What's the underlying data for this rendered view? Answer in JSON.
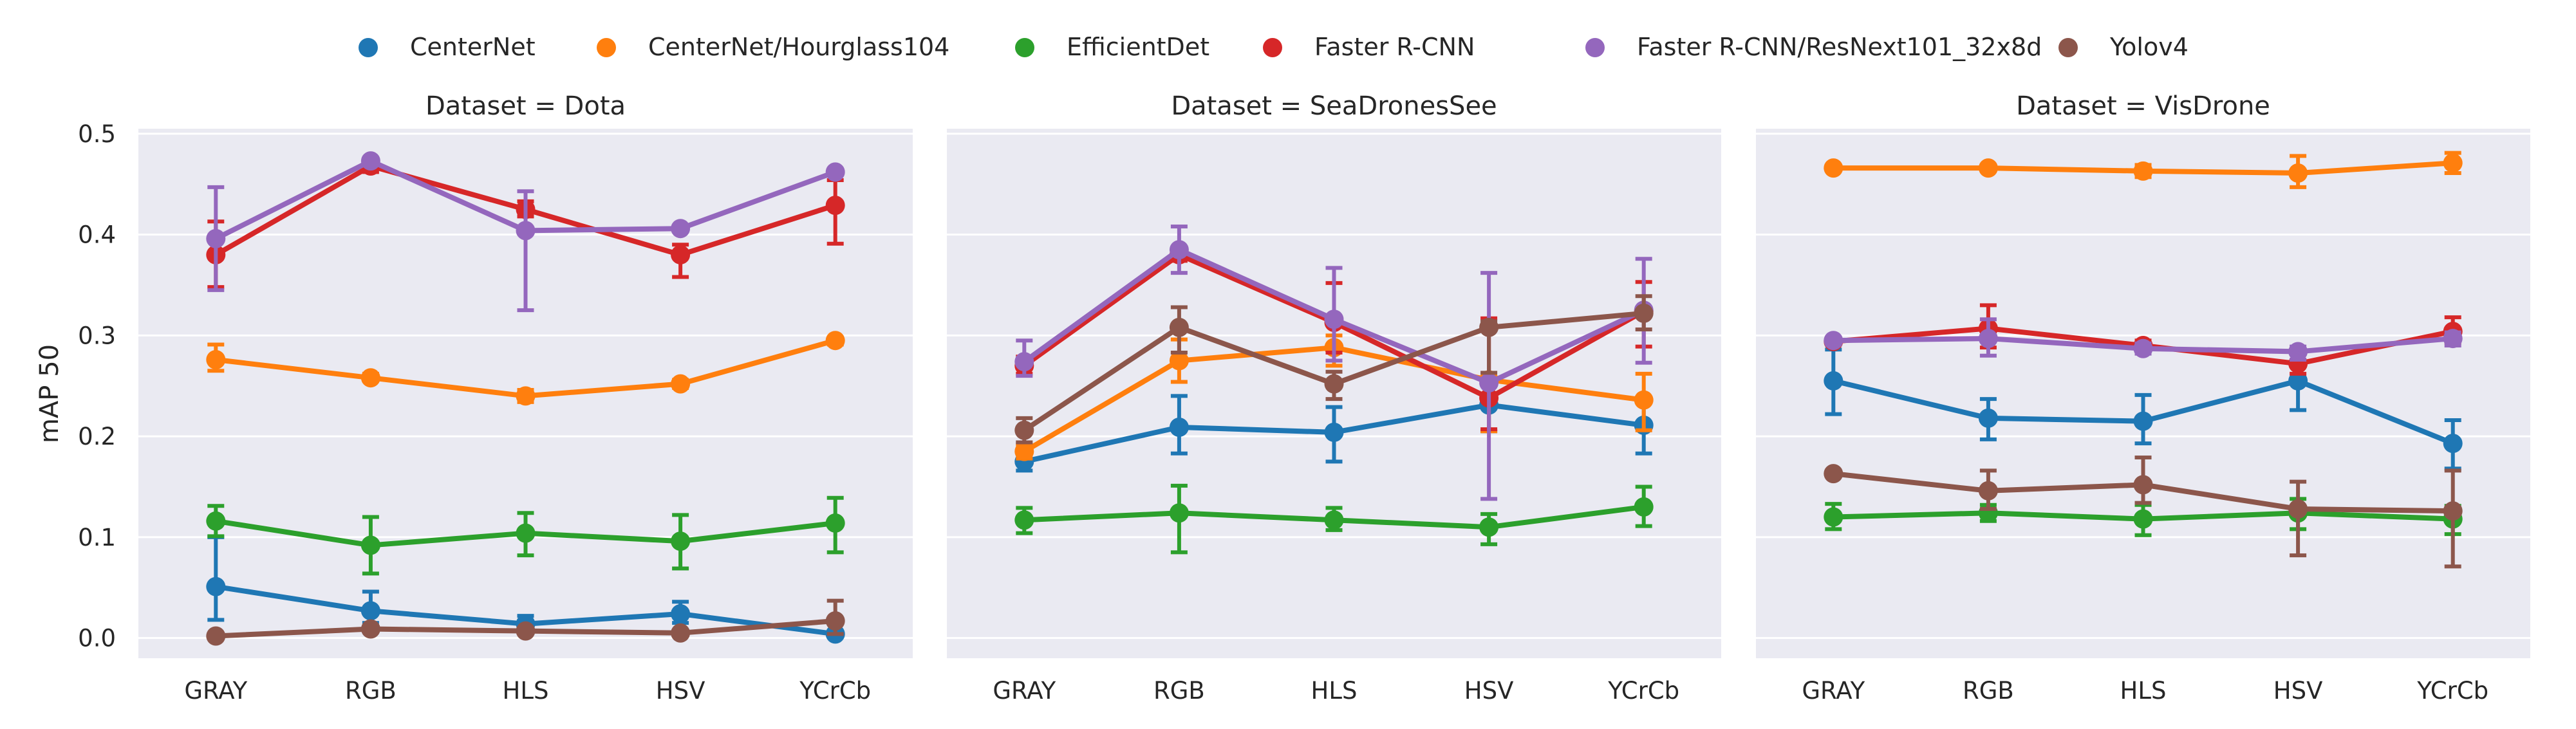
{
  "chart_data": {
    "type": "line",
    "ylabel": "mAP 50",
    "ylim": [
      -0.02,
      0.505
    ],
    "yticks": [
      "0.0",
      "0.1",
      "0.2",
      "0.3",
      "0.4",
      "0.5"
    ],
    "grid": true,
    "legend_position": "top-center",
    "categories": [
      "GRAY",
      "RGB",
      "HLS",
      "HSV",
      "YCrCb"
    ],
    "series_styles": [
      {
        "name": "CenterNet",
        "color": "#1f77b4"
      },
      {
        "name": "CenterNet/Hourglass104",
        "color": "#ff7f0e"
      },
      {
        "name": "EfficientDet",
        "color": "#2ca02c"
      },
      {
        "name": "Faster R-CNN",
        "color": "#d62728"
      },
      {
        "name": "Faster R-CNN/ResNext101_32x8d",
        "color": "#9467bd"
      },
      {
        "name": "Yolov4",
        "color": "#8c564b"
      }
    ],
    "panels": [
      {
        "title": "Dataset = Dota",
        "series": [
          {
            "name": "CenterNet",
            "values": [
              0.051,
              0.027,
              0.014,
              0.024,
              0.004
            ],
            "err_low": [
              0.018,
              0.015,
              0.008,
              0.015,
              0.002
            ],
            "err_high": [
              0.1,
              0.046,
              0.022,
              0.036,
              0.007
            ]
          },
          {
            "name": "CenterNet/Hourglass104",
            "values": [
              0.276,
              0.258,
              0.24,
              0.252,
              0.295
            ],
            "err_low": [
              0.265,
              0.255,
              0.234,
              0.248,
              0.291
            ],
            "err_high": [
              0.291,
              0.262,
              0.246,
              0.256,
              0.298
            ]
          },
          {
            "name": "EfficientDet",
            "values": [
              0.116,
              0.092,
              0.104,
              0.096,
              0.114
            ],
            "err_low": [
              0.101,
              0.064,
              0.082,
              0.069,
              0.085
            ],
            "err_high": [
              0.131,
              0.12,
              0.124,
              0.122,
              0.139
            ]
          },
          {
            "name": "Faster R-CNN",
            "values": [
              0.38,
              0.468,
              0.425,
              0.38,
              0.429
            ],
            "err_low": [
              0.348,
              0.462,
              0.418,
              0.358,
              0.391
            ],
            "err_high": [
              0.413,
              0.472,
              0.433,
              0.39,
              0.454
            ]
          },
          {
            "name": "Faster R-CNN/ResNext101_32x8d",
            "values": [
              0.396,
              0.473,
              0.404,
              0.406,
              0.462
            ],
            "err_low": [
              0.345,
              0.471,
              0.325,
              0.405,
              0.46
            ],
            "err_high": [
              0.447,
              0.475,
              0.443,
              0.407,
              0.465
            ]
          },
          {
            "name": "Yolov4",
            "values": [
              0.002,
              0.009,
              0.007,
              0.005,
              0.017
            ],
            "err_low": [
              0.001,
              0.007,
              0.005,
              0.004,
              0.004
            ],
            "err_high": [
              0.004,
              0.012,
              0.009,
              0.007,
              0.037
            ]
          }
        ]
      },
      {
        "title": "Dataset = SeaDronesSee",
        "series": [
          {
            "name": "CenterNet",
            "values": [
              0.175,
              0.209,
              0.204,
              0.231,
              0.211
            ],
            "err_low": [
              0.166,
              0.183,
              0.175,
              0.205,
              0.183
            ],
            "err_high": [
              0.182,
              0.24,
              0.229,
              0.257,
              0.235
            ]
          },
          {
            "name": "CenterNet/Hourglass104",
            "values": [
              0.185,
              0.275,
              0.288,
              0.256,
              0.236
            ],
            "err_low": [
              0.178,
              0.254,
              0.27,
              0.205,
              0.206
            ],
            "err_high": [
              0.192,
              0.296,
              0.3,
              0.31,
              0.262
            ]
          },
          {
            "name": "EfficientDet",
            "values": [
              0.117,
              0.124,
              0.117,
              0.11,
              0.13
            ],
            "err_low": [
              0.104,
              0.085,
              0.107,
              0.093,
              0.111
            ],
            "err_high": [
              0.129,
              0.151,
              0.129,
              0.123,
              0.15
            ]
          },
          {
            "name": "Faster R-CNN",
            "values": [
              0.27,
              0.38,
              0.313,
              0.238,
              0.324
            ],
            "err_low": [
              0.262,
              0.374,
              0.283,
              0.207,
              0.289
            ],
            "err_high": [
              0.279,
              0.385,
              0.352,
              0.317,
              0.353
            ]
          },
          {
            "name": "Faster R-CNN/ResNext101_32x8d",
            "values": [
              0.274,
              0.385,
              0.316,
              0.253,
              0.325
            ],
            "err_low": [
              0.26,
              0.362,
              0.275,
              0.138,
              0.273
            ],
            "err_high": [
              0.295,
              0.408,
              0.367,
              0.362,
              0.376
            ]
          },
          {
            "name": "Yolov4",
            "values": [
              0.206,
              0.308,
              0.252,
              0.308,
              0.322
            ],
            "err_low": [
              0.194,
              0.283,
              0.237,
              0.263,
              0.306
            ],
            "err_high": [
              0.218,
              0.328,
              0.264,
              0.314,
              0.339
            ]
          }
        ]
      },
      {
        "title": "Dataset = VisDrone",
        "series": [
          {
            "name": "CenterNet",
            "values": [
              0.255,
              0.218,
              0.215,
              0.255,
              0.193
            ],
            "err_low": [
              0.222,
              0.197,
              0.193,
              0.226,
              0.168
            ],
            "err_high": [
              0.286,
              0.237,
              0.241,
              0.283,
              0.216
            ]
          },
          {
            "name": "CenterNet/Hourglass104",
            "values": [
              0.466,
              0.466,
              0.463,
              0.461,
              0.471
            ],
            "err_low": [
              0.464,
              0.463,
              0.457,
              0.447,
              0.461
            ],
            "err_high": [
              0.468,
              0.469,
              0.469,
              0.478,
              0.481
            ]
          },
          {
            "name": "EfficientDet",
            "values": [
              0.12,
              0.124,
              0.118,
              0.124,
              0.118
            ],
            "err_low": [
              0.108,
              0.116,
              0.102,
              0.108,
              0.103
            ],
            "err_high": [
              0.133,
              0.132,
              0.132,
              0.138,
              0.131
            ]
          },
          {
            "name": "Faster R-CNN",
            "values": [
              0.294,
              0.307,
              0.29,
              0.272,
              0.304
            ],
            "err_low": [
              0.291,
              0.288,
              0.285,
              0.262,
              0.293
            ],
            "err_high": [
              0.297,
              0.33,
              0.295,
              0.285,
              0.318
            ]
          },
          {
            "name": "Faster R-CNN/ResNext101_32x8d",
            "values": [
              0.295,
              0.297,
              0.287,
              0.284,
              0.297
            ],
            "err_low": [
              0.291,
              0.28,
              0.282,
              0.276,
              0.29
            ],
            "err_high": [
              0.298,
              0.316,
              0.292,
              0.289,
              0.303
            ]
          },
          {
            "name": "Yolov4",
            "values": [
              0.163,
              0.146,
              0.152,
              0.128,
              0.126
            ],
            "err_low": [
              0.161,
              0.128,
              0.134,
              0.082,
              0.071
            ],
            "err_high": [
              0.165,
              0.166,
              0.179,
              0.155,
              0.166
            ]
          }
        ]
      }
    ]
  }
}
